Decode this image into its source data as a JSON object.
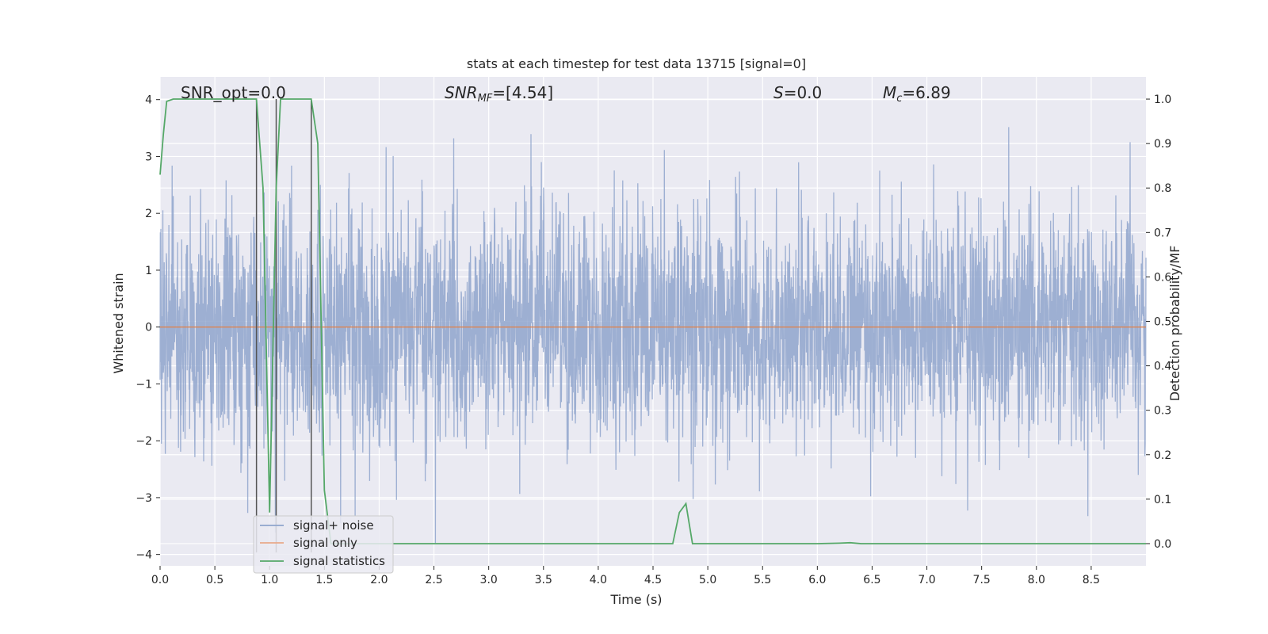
{
  "chart_data": {
    "type": "line",
    "title": "stats at each timestep for test data 13715 [signal=0]",
    "xlabel": "Time (s)",
    "ylabel": "Whitened strain",
    "ylabel_right": "Detection probability/MF",
    "xlim": [
      0,
      9.0
    ],
    "ylim": [
      -4.2,
      4.4
    ],
    "ylim_right": [
      -0.05,
      1.05
    ],
    "x_ticks": [
      0.0,
      0.5,
      1.0,
      1.5,
      2.0,
      2.5,
      3.0,
      3.5,
      4.0,
      4.5,
      5.0,
      5.5,
      6.0,
      6.5,
      7.0,
      7.5,
      8.0,
      8.5
    ],
    "x_tick_labels": [
      "0.0",
      "0.5",
      "1.0",
      "1.5",
      "2.0",
      "2.5",
      "3.0",
      "3.5",
      "4.0",
      "4.5",
      "5.0",
      "5.5",
      "6.0",
      "6.5",
      "7.0",
      "7.5",
      "8.0",
      "8.5"
    ],
    "y_ticks": [
      -4,
      -3,
      -2,
      -1,
      0,
      1,
      2,
      3,
      4
    ],
    "y_tick_labels": [
      "−4",
      "−3",
      "−2",
      "−1",
      "0",
      "1",
      "2",
      "3",
      "4"
    ],
    "y_ticks_right": [
      0.0,
      0.1,
      0.2,
      0.3,
      0.4,
      0.5,
      0.6,
      0.7,
      0.8,
      0.9,
      1.0
    ],
    "y_tick_labels_right": [
      "0.0",
      "0.1",
      "0.2",
      "0.3",
      "0.4",
      "0.5",
      "0.6",
      "0.7",
      "0.8",
      "0.9",
      "1.0"
    ],
    "grid": true,
    "legend": {
      "placement": "lower-left",
      "entries": [
        "signal+ noise",
        "signal only",
        "signal statistics"
      ]
    },
    "annotations": {
      "snr_opt": "SNR_opt=0.0",
      "snr_mf_main": "SNR",
      "snr_mf_sub": "MF",
      "snr_mf_value": "=[4.54]",
      "s_main": "S",
      "s_value": "=0.0",
      "mc_main": "M",
      "mc_sub": "c",
      "mc_value": "=6.89"
    },
    "series": [
      {
        "name": "signal+ noise",
        "axis": "left",
        "color": "#8fa4cc",
        "description_points": "dense whitened noise, ~2048 Hz sampling",
        "x": [
          0.0,
          9.0
        ],
        "y_range": [
          -3.8,
          4.0
        ]
      },
      {
        "name": "signal only",
        "axis": "left",
        "color": "#dd8452",
        "x": [
          0.0,
          9.0
        ],
        "y": [
          0.0,
          0.0
        ]
      },
      {
        "name": "signal statistics",
        "axis": "right",
        "color": "#55a868",
        "x": [
          0.0,
          0.03,
          0.06,
          0.12,
          0.25,
          0.5,
          0.88,
          0.94,
          1.0,
          1.06,
          1.1,
          1.2,
          1.38,
          1.44,
          1.5,
          1.56,
          2.0,
          3.0,
          4.0,
          4.68,
          4.74,
          4.8,
          4.86,
          5.0,
          6.0,
          6.2,
          6.3,
          6.4,
          7.0,
          8.0,
          9.0
        ],
        "y": [
          0.83,
          0.92,
          0.995,
          1.0,
          1.0,
          1.0,
          1.0,
          0.8,
          0.07,
          0.8,
          1.0,
          1.0,
          1.0,
          0.9,
          0.12,
          0.0,
          0.0,
          0.0,
          0.0,
          0.0,
          0.07,
          0.09,
          0.0,
          0.0,
          0.0,
          0.001,
          0.002,
          0.0,
          0.0,
          0.0,
          0.0
        ]
      }
    ],
    "vertical_lines": {
      "color": "#555555",
      "x": [
        0.88,
        1.06,
        1.38
      ]
    },
    "colors": {
      "plot_background": "#eaeaf2",
      "grid": "#ffffff"
    }
  }
}
